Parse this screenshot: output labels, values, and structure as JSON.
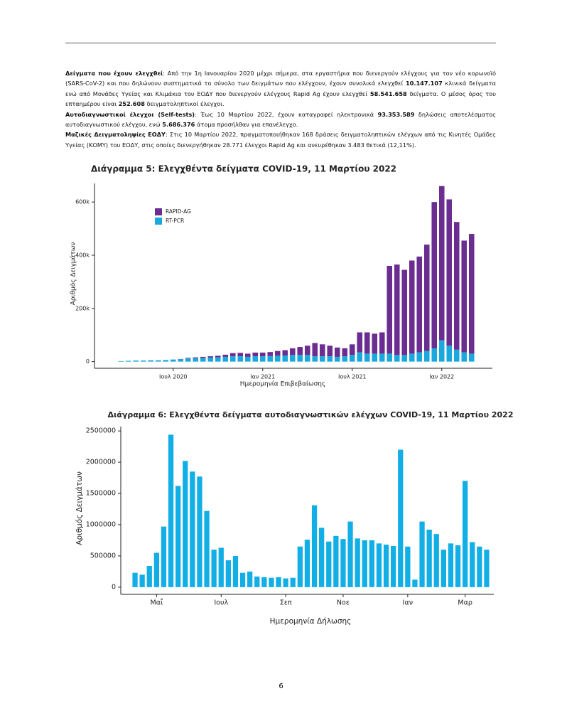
{
  "document": {
    "paragraphs": [
      [
        {
          "text": "Δείγματα που έχουν ελεγχθεί",
          "bold": true
        },
        {
          "text": ": Από την 1η Ιανουαρίου 2020 μέχρι σήμερα, στα εργαστήρια που διενεργούν ελέγχους για τον νέο κορωνοϊό (SARS-CoV-2) και που δηλώνουν συστηματικά το σύνολο των δειγμάτων που ελέγχουν, έχουν συνολικά ελεγχθεί ",
          "bold": false
        },
        {
          "text": "10.147.107",
          "bold": true
        },
        {
          "text": " κλινικά δείγματα ενώ από Μονάδες Υγείας και Κλιμάκια του ΕΟΔΥ που διενεργούν ελέγχους Rapid Ag έχουν ελεγχθεί ",
          "bold": false
        },
        {
          "text": "58.541.658",
          "bold": true
        },
        {
          "text": " δείγματα. Ο μέσος όρος του επταημέρου είναι ",
          "bold": false
        },
        {
          "text": "252.608",
          "bold": true
        },
        {
          "text": " δειγματοληπτικοί έλεγχοι.",
          "bold": false
        }
      ],
      [
        {
          "text": "Αυτοδιαγνωστικοί έλεγχοι (Self-tests)",
          "bold": true
        },
        {
          "text": ": Έως 10 Μαρτίου 2022, έχουν καταγραφεί ηλεκτρονικά ",
          "bold": false
        },
        {
          "text": "93.353.589",
          "bold": true
        },
        {
          "text": " δηλώσεις αποτελέσματος αυτοδιαγνωστικού ελέγχου, ενώ ",
          "bold": false
        },
        {
          "text": "5.686.376",
          "bold": true
        },
        {
          "text": " άτομα προσήλθαν για επανέλεγχο.",
          "bold": false
        }
      ],
      [
        {
          "text": "Μαζικές Δειγματοληψίες ΕΟΔΥ",
          "bold": true
        },
        {
          "text": ": Στις 10 Μαρτίου 2022, πραγματοποιήθηκαν 168 δράσεις δειγματοληπτικών ελέγχων από τις Κινητές Ομάδες Υγείας (ΚΟΜΥ) του ΕΟΔΥ, στις οποίες διενεργήθηκαν 28.771 έλεγχοι Rapid Ag και ανευρέθηκαν 3.483 θετικά (12,11%).",
          "bold": false
        }
      ]
    ],
    "page_number": "6"
  },
  "chart_data": [
    {
      "type": "bar",
      "stacked": true,
      "title": "Διάγραμμα 5: Ελεγχθέντα δείγματα COVID-19, 11 Μαρτίου 2022",
      "x_label": "Ημερομηνία Επιβεβαίωσης",
      "y_label": "Αριθμός Δειγμάτων",
      "categories": [
        null,
        null,
        null,
        null,
        null,
        null,
        null,
        "Ιουλ 2020",
        null,
        null,
        null,
        null,
        null,
        null,
        null,
        null,
        null,
        null,
        null,
        "Ιαν 2021",
        null,
        null,
        null,
        null,
        null,
        null,
        null,
        null,
        null,
        null,
        null,
        "Ιουλ 2021",
        null,
        null,
        null,
        null,
        null,
        null,
        null,
        null,
        null,
        null,
        null,
        "Ιαν 2022",
        null,
        null,
        null,
        null
      ],
      "series": [
        {
          "name": "RAPID-AG",
          "color": "#6b2d90",
          "values": [
            0,
            0,
            0,
            0,
            0,
            0,
            0,
            0,
            1000,
            2000,
            3000,
            4000,
            5000,
            6000,
            8000,
            12000,
            13000,
            12000,
            14000,
            14000,
            15000,
            18000,
            20000,
            25000,
            30000,
            35000,
            50000,
            45000,
            40000,
            35000,
            30000,
            40000,
            75000,
            80000,
            75000,
            80000,
            330000,
            340000,
            320000,
            350000,
            360000,
            400000,
            550000,
            580000,
            550000,
            480000,
            420000,
            450000
          ]
        },
        {
          "name": "RT-PCR",
          "color": "#1ba8de",
          "values": [
            2000,
            3000,
            4000,
            4000,
            5000,
            5000,
            6000,
            8000,
            9000,
            12000,
            13000,
            14000,
            15000,
            16000,
            18000,
            20000,
            20000,
            18000,
            20000,
            20000,
            21000,
            22000,
            23000,
            25000,
            25000,
            25000,
            20000,
            20000,
            20000,
            18000,
            20000,
            25000,
            35000,
            30000,
            30000,
            30000,
            30000,
            25000,
            25000,
            30000,
            35000,
            40000,
            50000,
            80000,
            60000,
            45000,
            35000,
            30000
          ]
        }
      ],
      "ylim": [
        -25000,
        670000
      ],
      "yticks": [
        {
          "value": 0,
          "label": "0"
        },
        {
          "value": 200000,
          "label": "200k"
        },
        {
          "value": 400000,
          "label": "400k"
        },
        {
          "value": 600000,
          "label": "600k"
        }
      ],
      "grid": false,
      "legend": "top-left"
    },
    {
      "type": "bar",
      "title": "Διάγραμμα 6: Ελεγχθέντα δείγματα αυτοδιαγνωστικών ελέγχων COVID-19, 11 Μαρτίου 2022",
      "x_label": "Ημερομηνία Δήλωσης",
      "y_label": "Αριθμός Δειγμάτων",
      "categories": [
        null,
        null,
        null,
        "Μαΐ",
        null,
        null,
        null,
        null,
        null,
        null,
        null,
        null,
        "Ιουλ",
        null,
        null,
        null,
        null,
        null,
        null,
        null,
        null,
        "Σεπ",
        null,
        null,
        null,
        null,
        null,
        null,
        null,
        "Νοε",
        null,
        null,
        null,
        null,
        null,
        null,
        null,
        null,
        "Ιαν",
        null,
        null,
        null,
        null,
        null,
        null,
        null,
        "Μαρ",
        null,
        null,
        null
      ],
      "values": [
        230000,
        200000,
        340000,
        550000,
        970000,
        2440000,
        1620000,
        2020000,
        1850000,
        1770000,
        1220000,
        600000,
        630000,
        430000,
        500000,
        230000,
        250000,
        170000,
        160000,
        150000,
        160000,
        140000,
        150000,
        650000,
        760000,
        1310000,
        950000,
        730000,
        820000,
        770000,
        1050000,
        780000,
        750000,
        750000,
        700000,
        680000,
        660000,
        2200000,
        650000,
        120000,
        1050000,
        920000,
        850000,
        600000,
        700000,
        670000,
        1700000,
        720000,
        650000,
        600000
      ],
      "color": "#12aee6",
      "ylim": [
        -115000,
        2570000
      ],
      "yticks": [
        0,
        500000,
        1000000,
        1500000,
        2000000,
        2500000
      ],
      "grid": false
    }
  ]
}
